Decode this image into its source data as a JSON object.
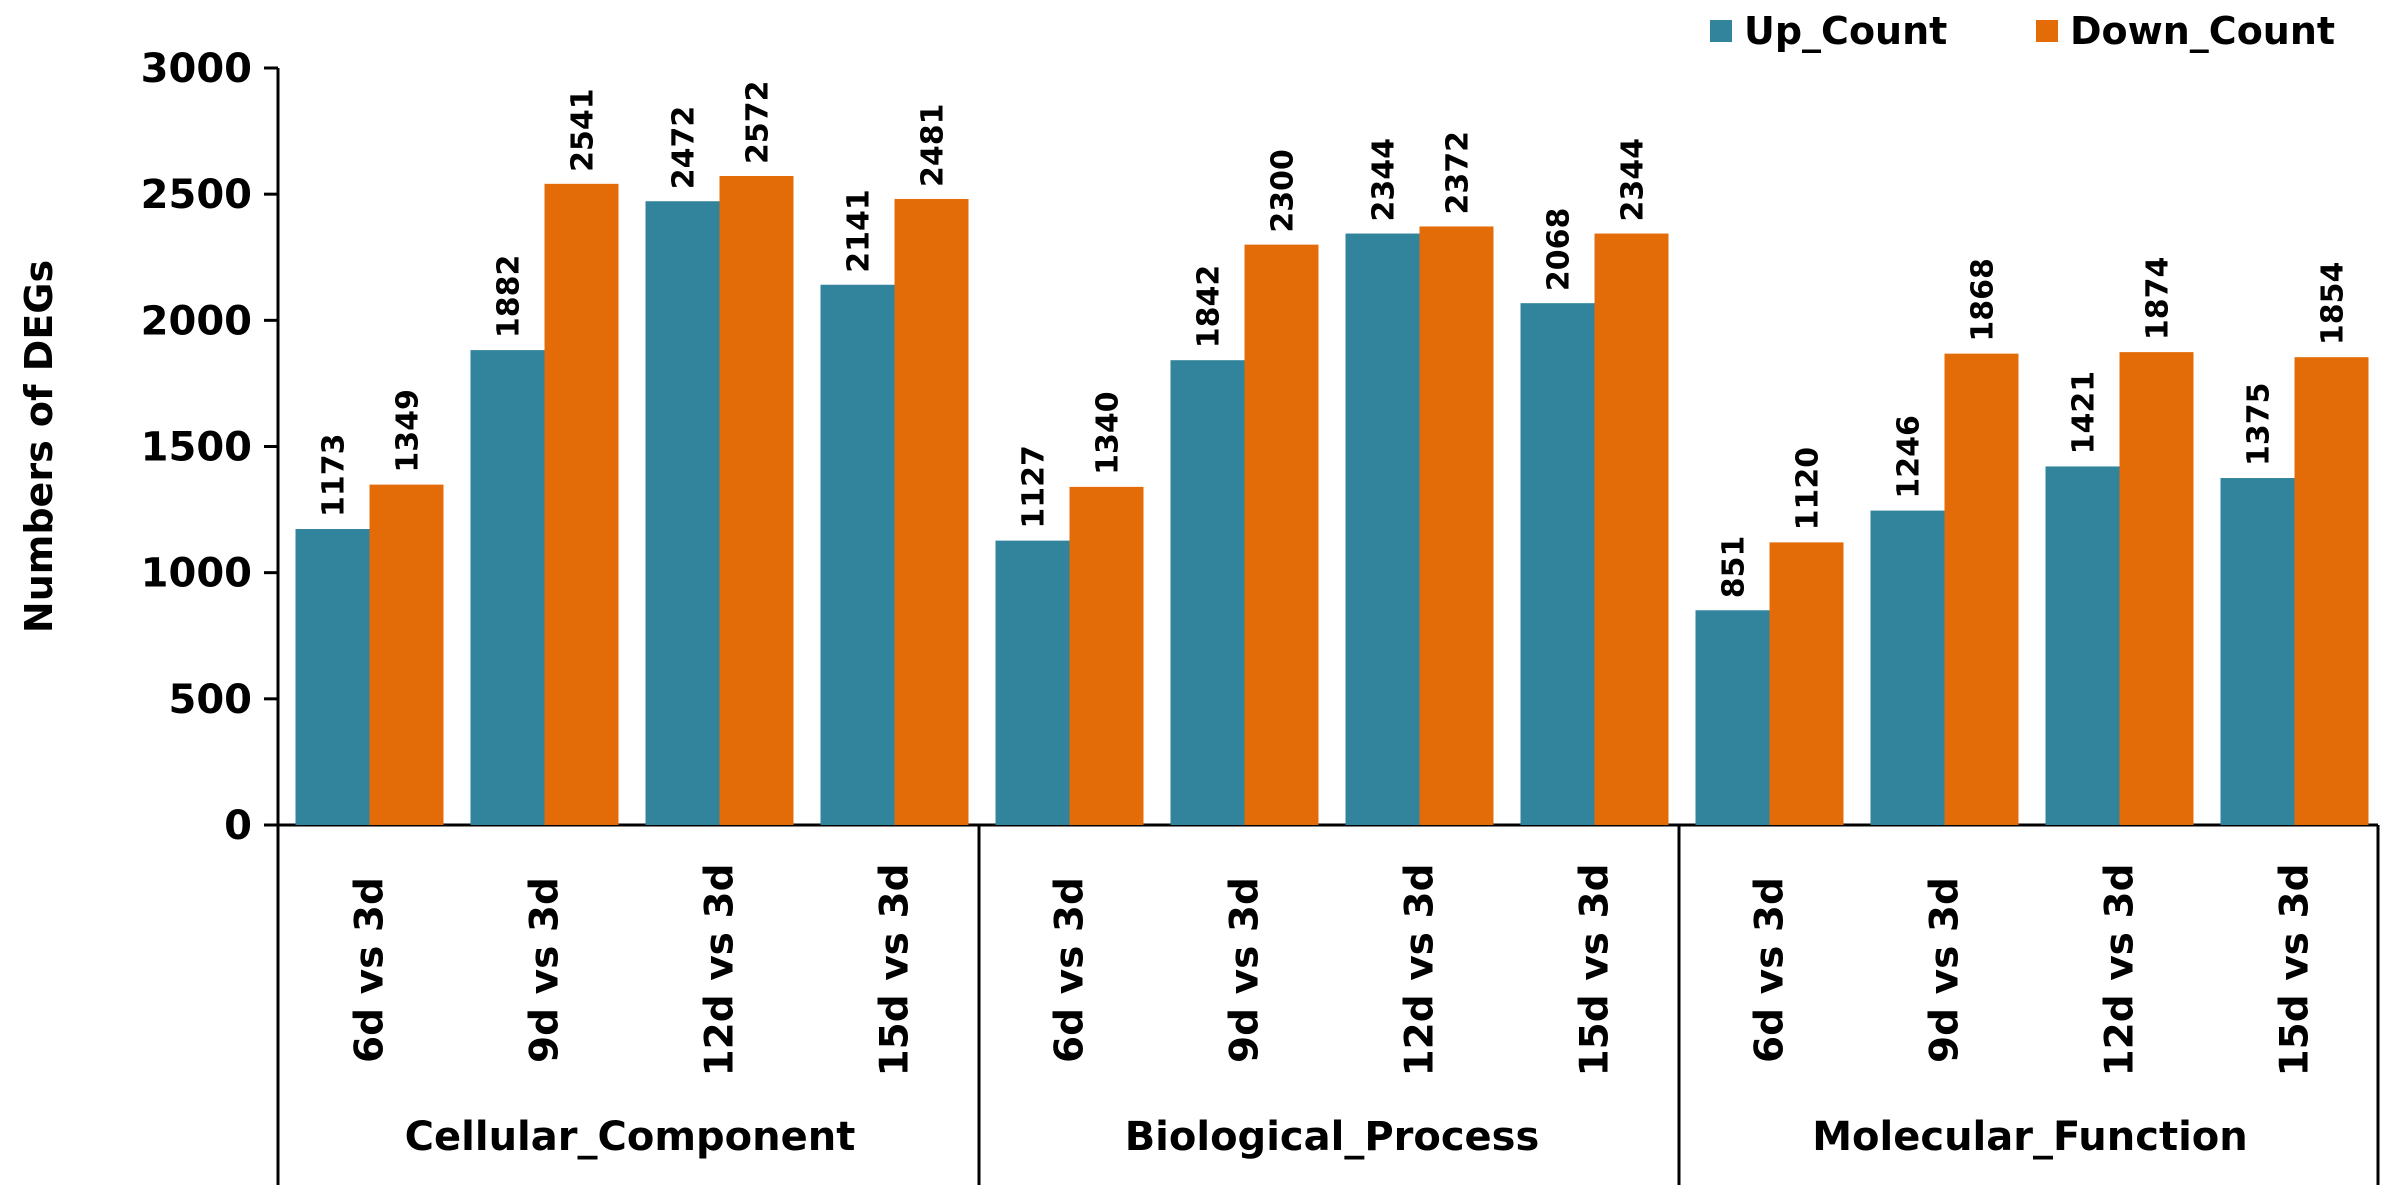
{
  "chart_data": {
    "type": "bar",
    "title": "",
    "xlabel": "",
    "ylabel": "Numbers of DEGs",
    "ylim": [
      0,
      3000
    ],
    "yticks": [
      0,
      500,
      1000,
      1500,
      2000,
      2500,
      3000
    ],
    "grid": false,
    "legend": "top-right",
    "groups": [
      {
        "name": "Cellular_Component",
        "categories": [
          "6d vs 3d",
          "9d vs 3d",
          "12d vs 3d",
          "15d vs 3d"
        ]
      },
      {
        "name": "Biological_Process",
        "categories": [
          "6d vs 3d",
          "9d vs 3d",
          "12d vs 3d",
          "15d vs 3d"
        ]
      },
      {
        "name": "Molecular_Function",
        "categories": [
          "6d vs 3d",
          "9d vs 3d",
          "12d vs 3d",
          "15d vs 3d"
        ]
      }
    ],
    "series": [
      {
        "name": "Up_Count",
        "color": "#31849B",
        "values": [
          1173,
          1882,
          2472,
          2141,
          1127,
          1842,
          2344,
          2068,
          851,
          1246,
          1421,
          1375
        ]
      },
      {
        "name": "Down_Count",
        "color": "#E36C09",
        "values": [
          1349,
          2541,
          2572,
          2481,
          1340,
          2300,
          2372,
          2344,
          1120,
          1868,
          1874,
          1854
        ]
      }
    ]
  }
}
